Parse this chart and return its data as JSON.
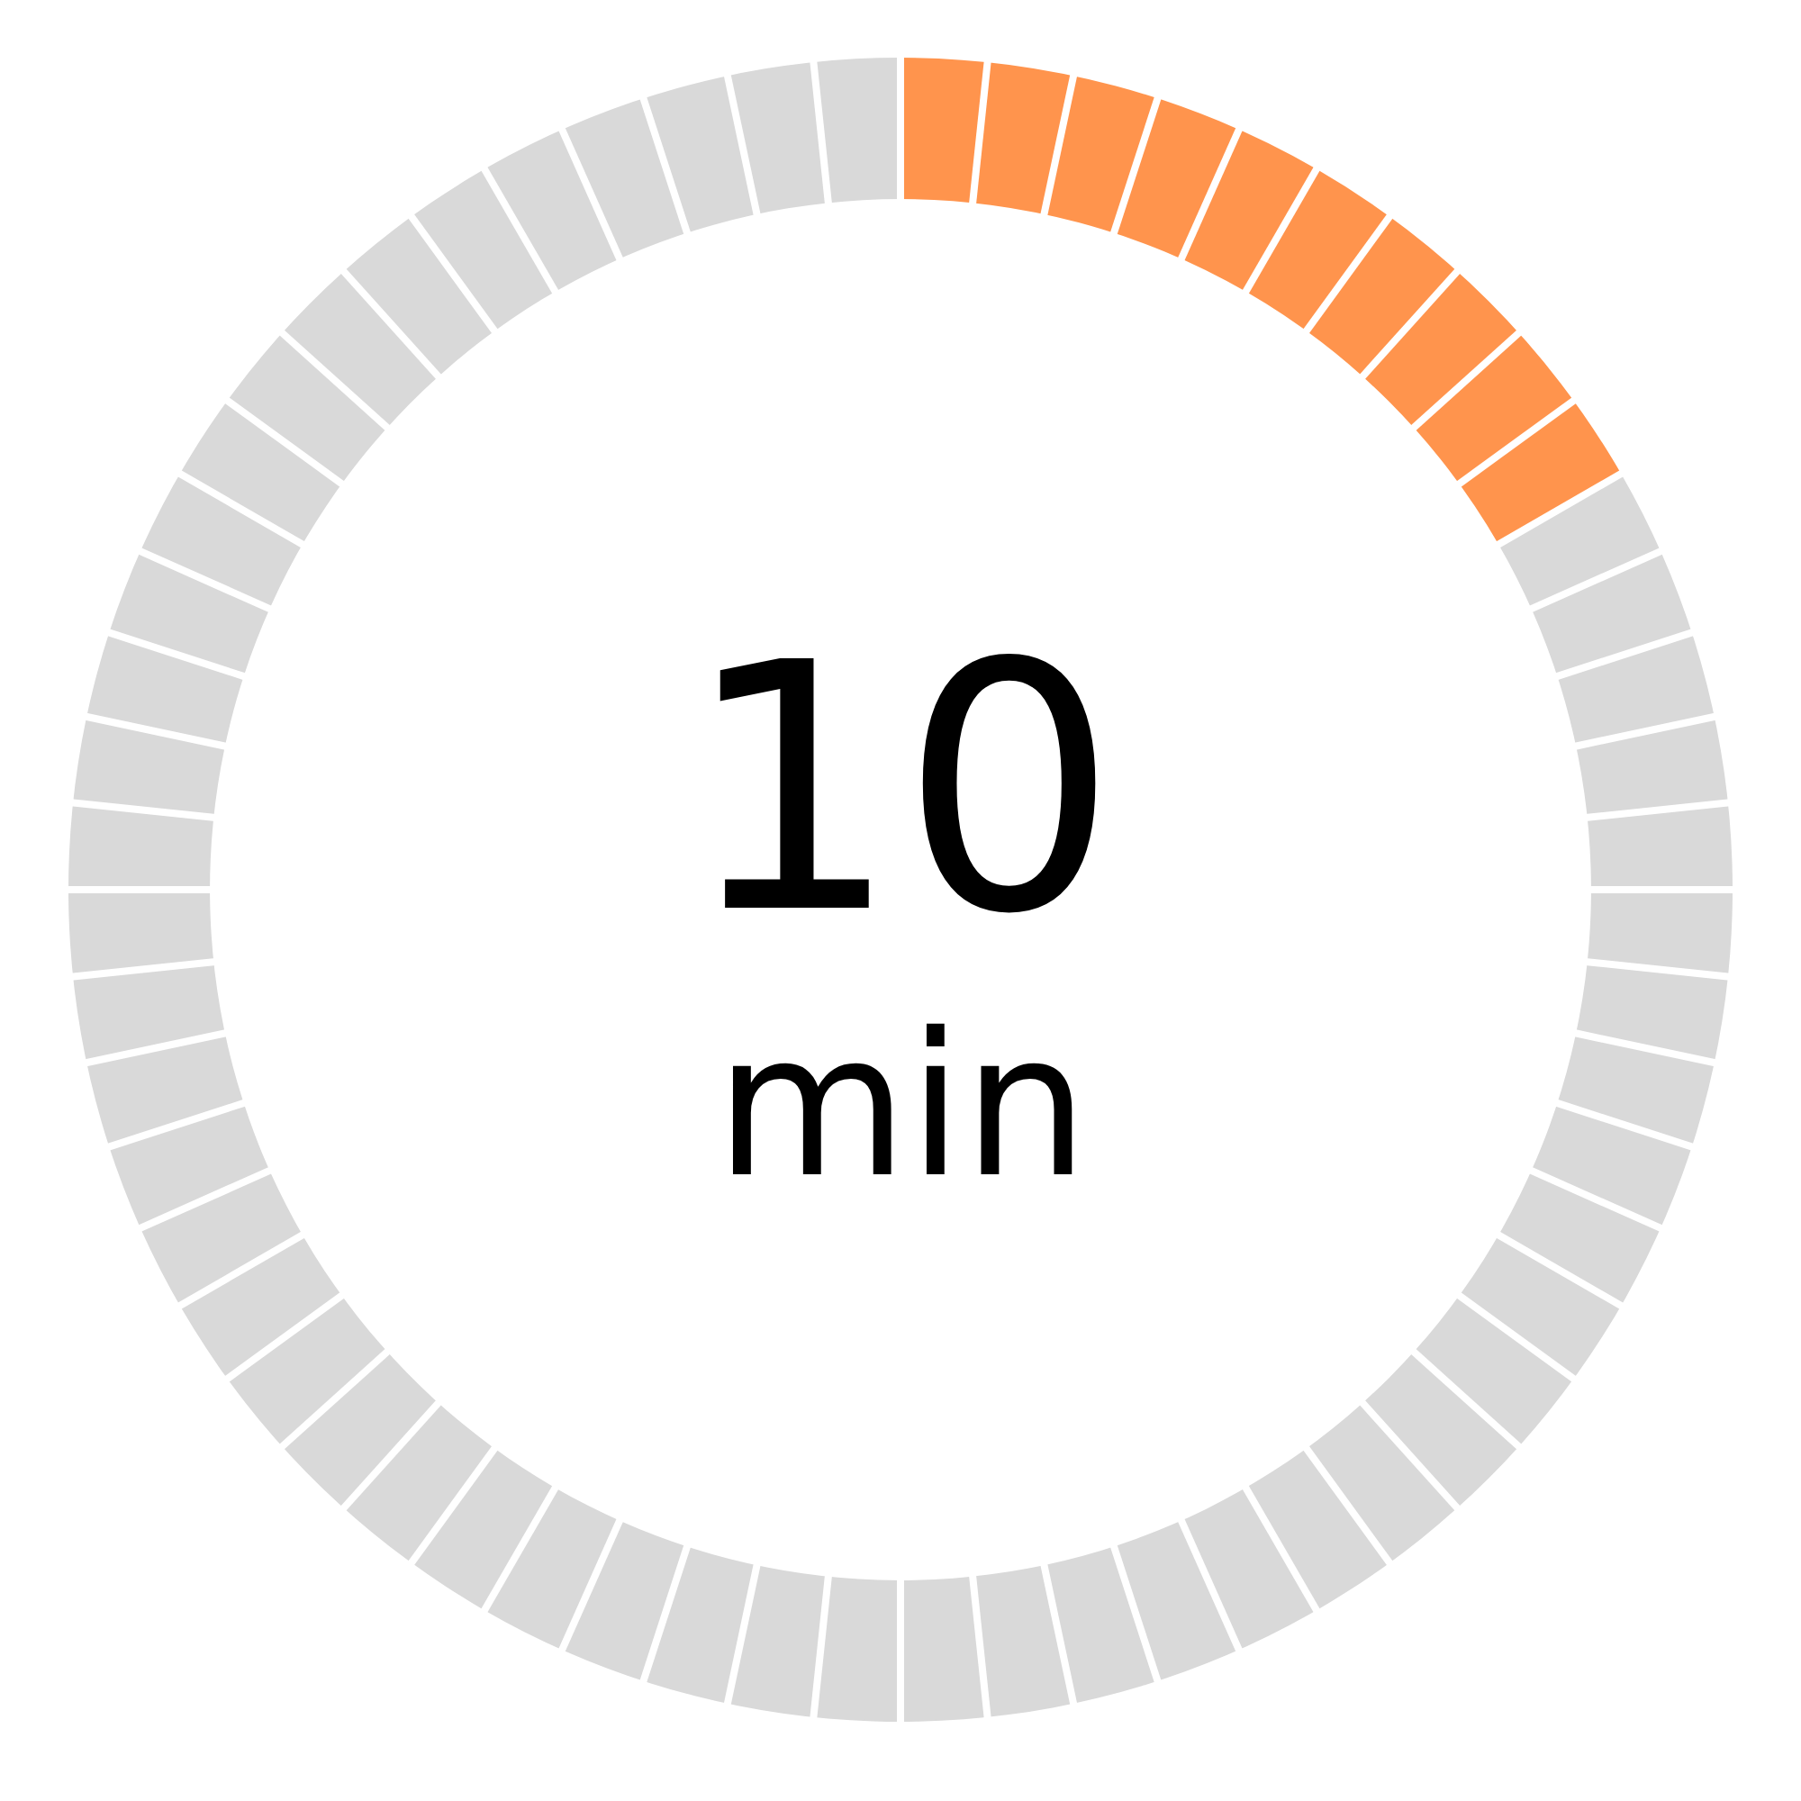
{
  "chart_data": {
    "type": "donut",
    "categories": [
      null,
      null
    ],
    "values": [
      16.67,
      83.33
    ],
    "colors": [
      "#ff944d",
      "#d9d9d9"
    ],
    "annotations": [
      "10",
      "min"
    ]
  }
}
